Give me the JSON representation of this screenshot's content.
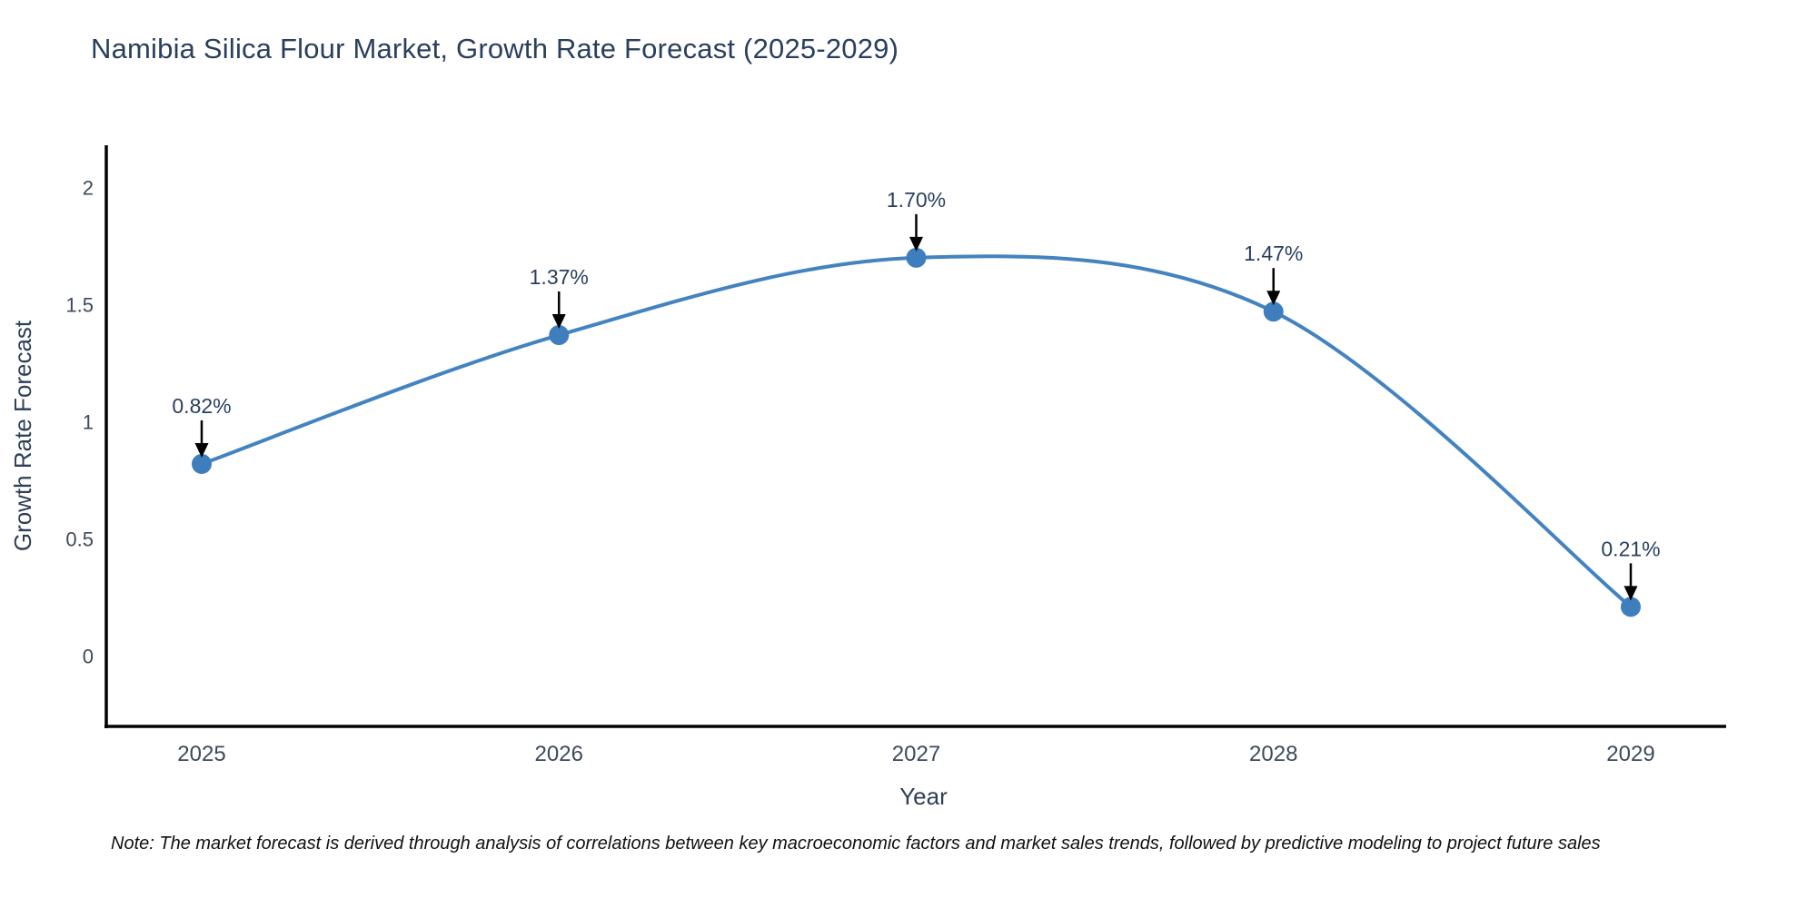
{
  "title": "Namibia Silica Flour Market, Growth Rate Forecast (2025-2029)",
  "note": "Note: The market forecast is derived through analysis of correlations between key macroeconomic factors and market sales trends, followed by predictive modeling to project future sales",
  "colors": {
    "background": "#ffffff",
    "title_text": "#2a3f5f",
    "axis_spine": "#000000",
    "tick_text": "#3d4a5c",
    "axis_label_text": "#2e3f57",
    "line": "#4383bf",
    "marker": "#3f7ebd",
    "annotation_text": "#2a3f5f",
    "annotation_arrow": "#000000",
    "note_text": "#111111"
  },
  "chart_data": {
    "type": "line",
    "title": "Namibia Silica Flour Market, Growth Rate Forecast (2025-2029)",
    "x": [
      "2025",
      "2026",
      "2027",
      "2028",
      "2029"
    ],
    "values": [
      0.82,
      1.37,
      1.7,
      1.47,
      0.21
    ],
    "point_labels": [
      "0.82%",
      "1.37%",
      "1.70%",
      "1.47%",
      "0.21%"
    ],
    "xlabel": "Year",
    "ylabel": "Growth Rate Forecast",
    "yticks": [
      0,
      0.5,
      1,
      1.5,
      2
    ],
    "ylim": [
      -0.3,
      2.18
    ],
    "line_shape": "spline",
    "grid": false,
    "legend": "none",
    "markers": true,
    "annotations": "value labels with down arrows above each point"
  }
}
